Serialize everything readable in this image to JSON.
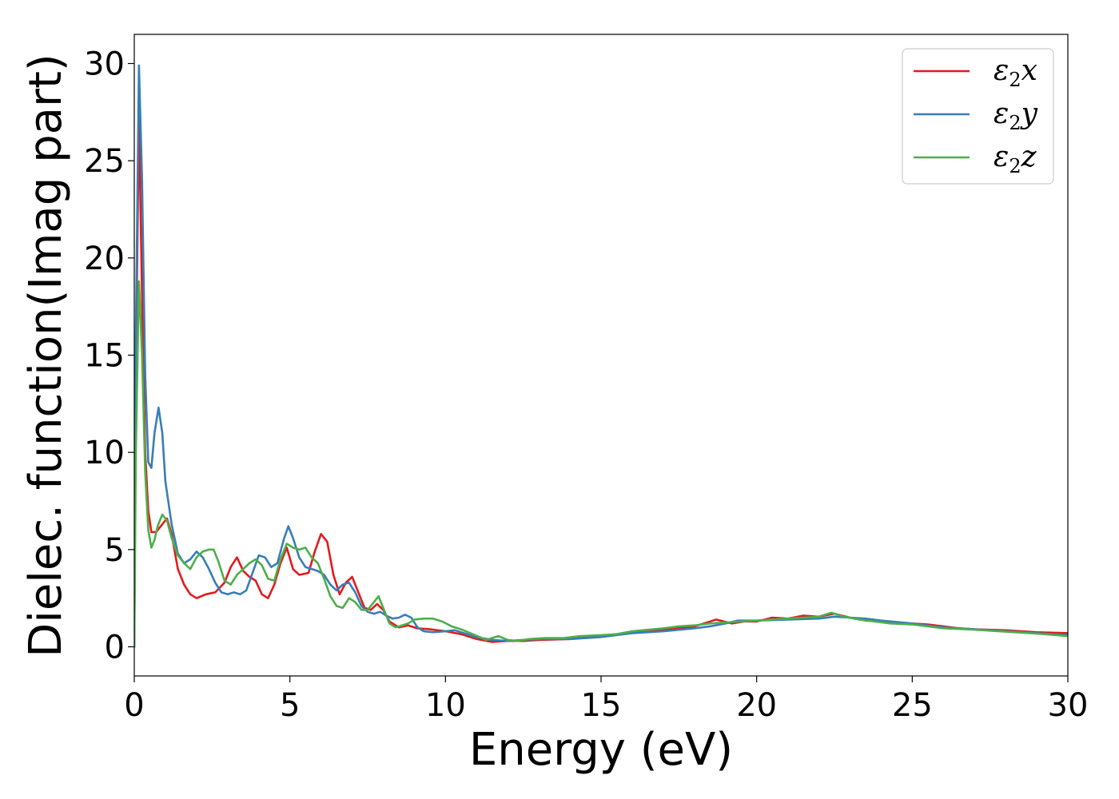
{
  "chart_data": {
    "type": "line",
    "xlabel": "Energy (eV)",
    "ylabel": "Dielec. function(Imag part)",
    "xlim": [
      0,
      30
    ],
    "ylim": [
      -1.5,
      31.5
    ],
    "x_ticks": [
      0,
      5,
      10,
      15,
      20,
      25,
      30
    ],
    "y_ticks": [
      0,
      5,
      10,
      15,
      20,
      25,
      30
    ],
    "grid": false,
    "legend_position": "top-right",
    "series": [
      {
        "name": "ε2x",
        "name_base": "ε",
        "name_sub": "2",
        "name_var": "x",
        "color": "#e41a1c",
        "points": [
          [
            0,
            0
          ],
          [
            0.05,
            14
          ],
          [
            0.15,
            27.3
          ],
          [
            0.25,
            18
          ],
          [
            0.35,
            10
          ],
          [
            0.45,
            7
          ],
          [
            0.55,
            5.9
          ],
          [
            0.7,
            5.9
          ],
          [
            0.9,
            6.3
          ],
          [
            1.05,
            6.6
          ],
          [
            1.2,
            5.8
          ],
          [
            1.4,
            4
          ],
          [
            1.6,
            3.2
          ],
          [
            1.8,
            2.7
          ],
          [
            2.0,
            2.5
          ],
          [
            2.3,
            2.7
          ],
          [
            2.6,
            2.8
          ],
          [
            2.9,
            3.3
          ],
          [
            3.1,
            4.1
          ],
          [
            3.3,
            4.6
          ],
          [
            3.5,
            3.9
          ],
          [
            3.7,
            3.6
          ],
          [
            3.9,
            3.4
          ],
          [
            4.1,
            2.7
          ],
          [
            4.3,
            2.5
          ],
          [
            4.5,
            3.2
          ],
          [
            4.7,
            4.3
          ],
          [
            4.9,
            5.1
          ],
          [
            5.1,
            4
          ],
          [
            5.3,
            3.7
          ],
          [
            5.6,
            3.8
          ],
          [
            5.8,
            4.9
          ],
          [
            6.0,
            5.8
          ],
          [
            6.2,
            5.4
          ],
          [
            6.4,
            3.7
          ],
          [
            6.6,
            2.7
          ],
          [
            6.8,
            3.3
          ],
          [
            7.0,
            3.6
          ],
          [
            7.2,
            2.8
          ],
          [
            7.4,
            2.0
          ],
          [
            7.6,
            1.9
          ],
          [
            7.8,
            2.2
          ],
          [
            8.0,
            1.9
          ],
          [
            8.2,
            1.3
          ],
          [
            8.5,
            1.0
          ],
          [
            8.8,
            1.1
          ],
          [
            9.1,
            0.95
          ],
          [
            9.5,
            0.9
          ],
          [
            10,
            0.8
          ],
          [
            10.5,
            0.65
          ],
          [
            11,
            0.4
          ],
          [
            11.5,
            0.25
          ],
          [
            12,
            0.3
          ],
          [
            12.5,
            0.3
          ],
          [
            13,
            0.35
          ],
          [
            14,
            0.4
          ],
          [
            15,
            0.55
          ],
          [
            16,
            0.75
          ],
          [
            17,
            0.85
          ],
          [
            18,
            1.05
          ],
          [
            18.7,
            1.4
          ],
          [
            19.2,
            1.2
          ],
          [
            19.6,
            1.3
          ],
          [
            20,
            1.3
          ],
          [
            20.5,
            1.5
          ],
          [
            21,
            1.45
          ],
          [
            21.5,
            1.6
          ],
          [
            22,
            1.55
          ],
          [
            22.5,
            1.7
          ],
          [
            23,
            1.5
          ],
          [
            23.5,
            1.35
          ],
          [
            24,
            1.3
          ],
          [
            24.5,
            1.2
          ],
          [
            25,
            1.2
          ],
          [
            25.5,
            1.15
          ],
          [
            26,
            1.05
          ],
          [
            26.5,
            0.95
          ],
          [
            27,
            0.9
          ],
          [
            28,
            0.85
          ],
          [
            29,
            0.75
          ],
          [
            30,
            0.7
          ]
        ]
      },
      {
        "name": "ε2y",
        "name_base": "ε",
        "name_sub": "2",
        "name_var": "y",
        "color": "#377eb8",
        "points": [
          [
            0,
            0
          ],
          [
            0.05,
            16
          ],
          [
            0.15,
            29.9
          ],
          [
            0.25,
            24
          ],
          [
            0.35,
            14
          ],
          [
            0.45,
            9.5
          ],
          [
            0.55,
            9.2
          ],
          [
            0.65,
            11
          ],
          [
            0.78,
            12.3
          ],
          [
            0.9,
            11
          ],
          [
            1.0,
            8.5
          ],
          [
            1.2,
            6.3
          ],
          [
            1.4,
            4.8
          ],
          [
            1.6,
            4.3
          ],
          [
            1.8,
            4.5
          ],
          [
            2.0,
            4.9
          ],
          [
            2.2,
            4.6
          ],
          [
            2.4,
            4.0
          ],
          [
            2.6,
            3.3
          ],
          [
            2.8,
            2.8
          ],
          [
            3.0,
            2.7
          ],
          [
            3.2,
            2.8
          ],
          [
            3.4,
            2.7
          ],
          [
            3.6,
            2.9
          ],
          [
            3.8,
            3.8
          ],
          [
            4.0,
            4.7
          ],
          [
            4.2,
            4.6
          ],
          [
            4.4,
            4.1
          ],
          [
            4.6,
            4.3
          ],
          [
            4.8,
            5.5
          ],
          [
            4.95,
            6.2
          ],
          [
            5.1,
            5.6
          ],
          [
            5.3,
            4.6
          ],
          [
            5.5,
            4.1
          ],
          [
            5.7,
            4.0
          ],
          [
            5.9,
            3.9
          ],
          [
            6.1,
            3.7
          ],
          [
            6.3,
            3.2
          ],
          [
            6.5,
            2.9
          ],
          [
            6.7,
            3.2
          ],
          [
            6.9,
            3.3
          ],
          [
            7.1,
            2.8
          ],
          [
            7.3,
            2.1
          ],
          [
            7.5,
            1.8
          ],
          [
            7.7,
            1.7
          ],
          [
            7.9,
            1.8
          ],
          [
            8.1,
            1.6
          ],
          [
            8.3,
            1.45
          ],
          [
            8.5,
            1.5
          ],
          [
            8.7,
            1.65
          ],
          [
            8.9,
            1.5
          ],
          [
            9.1,
            1.0
          ],
          [
            9.3,
            0.8
          ],
          [
            9.6,
            0.75
          ],
          [
            10,
            0.8
          ],
          [
            10.3,
            0.85
          ],
          [
            10.6,
            0.7
          ],
          [
            11,
            0.5
          ],
          [
            11.5,
            0.35
          ],
          [
            12,
            0.3
          ],
          [
            12.5,
            0.35
          ],
          [
            13,
            0.4
          ],
          [
            14,
            0.4
          ],
          [
            15,
            0.5
          ],
          [
            16,
            0.7
          ],
          [
            17,
            0.8
          ],
          [
            18,
            0.95
          ],
          [
            18.5,
            1.05
          ],
          [
            19,
            1.2
          ],
          [
            19.4,
            1.35
          ],
          [
            20,
            1.35
          ],
          [
            21,
            1.4
          ],
          [
            22,
            1.45
          ],
          [
            22.5,
            1.55
          ],
          [
            23,
            1.5
          ],
          [
            23.5,
            1.45
          ],
          [
            24,
            1.35
          ],
          [
            25,
            1.2
          ],
          [
            25.5,
            1.1
          ],
          [
            26,
            1.0
          ],
          [
            27,
            0.9
          ],
          [
            28,
            0.8
          ],
          [
            29,
            0.7
          ],
          [
            30,
            0.6
          ]
        ]
      },
      {
        "name": "ε2z",
        "name_base": "ε",
        "name_sub": "2",
        "name_var": "z",
        "color": "#4daf4a",
        "points": [
          [
            0,
            0
          ],
          [
            0.05,
            10
          ],
          [
            0.15,
            18.8
          ],
          [
            0.25,
            15
          ],
          [
            0.35,
            9
          ],
          [
            0.45,
            6
          ],
          [
            0.55,
            5.1
          ],
          [
            0.65,
            5.5
          ],
          [
            0.75,
            6.2
          ],
          [
            0.9,
            6.8
          ],
          [
            1.05,
            6.5
          ],
          [
            1.2,
            5.6
          ],
          [
            1.4,
            4.7
          ],
          [
            1.6,
            4.3
          ],
          [
            1.8,
            4.0
          ],
          [
            2.0,
            4.6
          ],
          [
            2.2,
            4.9
          ],
          [
            2.4,
            5.0
          ],
          [
            2.55,
            5.0
          ],
          [
            2.7,
            4.4
          ],
          [
            2.9,
            3.4
          ],
          [
            3.1,
            3.2
          ],
          [
            3.3,
            3.7
          ],
          [
            3.5,
            4.0
          ],
          [
            3.7,
            4.3
          ],
          [
            3.9,
            4.5
          ],
          [
            4.1,
            4.2
          ],
          [
            4.3,
            3.5
          ],
          [
            4.5,
            3.4
          ],
          [
            4.7,
            4.5
          ],
          [
            4.9,
            5.3
          ],
          [
            5.1,
            5.1
          ],
          [
            5.3,
            5.0
          ],
          [
            5.5,
            5.1
          ],
          [
            5.7,
            4.6
          ],
          [
            5.9,
            4.3
          ],
          [
            6.1,
            3.5
          ],
          [
            6.3,
            2.6
          ],
          [
            6.5,
            2.1
          ],
          [
            6.7,
            2.0
          ],
          [
            6.9,
            2.5
          ],
          [
            7.1,
            2.3
          ],
          [
            7.3,
            1.9
          ],
          [
            7.5,
            1.9
          ],
          [
            7.7,
            2.3
          ],
          [
            7.85,
            2.6
          ],
          [
            8.0,
            2.0
          ],
          [
            8.2,
            1.2
          ],
          [
            8.4,
            1.0
          ],
          [
            8.6,
            1.1
          ],
          [
            8.8,
            1.2
          ],
          [
            9.0,
            1.4
          ],
          [
            9.3,
            1.45
          ],
          [
            9.6,
            1.45
          ],
          [
            9.9,
            1.3
          ],
          [
            10.2,
            1.05
          ],
          [
            10.5,
            0.9
          ],
          [
            10.8,
            0.7
          ],
          [
            11.1,
            0.5
          ],
          [
            11.3,
            0.35
          ],
          [
            11.5,
            0.45
          ],
          [
            11.7,
            0.55
          ],
          [
            12,
            0.35
          ],
          [
            12.3,
            0.3
          ],
          [
            12.7,
            0.4
          ],
          [
            13.2,
            0.45
          ],
          [
            13.8,
            0.45
          ],
          [
            14.3,
            0.55
          ],
          [
            15,
            0.6
          ],
          [
            15.5,
            0.65
          ],
          [
            16,
            0.8
          ],
          [
            17,
            0.95
          ],
          [
            17.5,
            1.05
          ],
          [
            18,
            1.1
          ],
          [
            18.5,
            1.2
          ],
          [
            19,
            1.25
          ],
          [
            19.5,
            1.3
          ],
          [
            20,
            1.35
          ],
          [
            20.5,
            1.4
          ],
          [
            21,
            1.45
          ],
          [
            21.5,
            1.5
          ],
          [
            22,
            1.55
          ],
          [
            22.4,
            1.75
          ],
          [
            22.8,
            1.55
          ],
          [
            23.3,
            1.4
          ],
          [
            23.8,
            1.3
          ],
          [
            24.3,
            1.2
          ],
          [
            25,
            1.15
          ],
          [
            25.5,
            1.05
          ],
          [
            26,
            0.95
          ],
          [
            27,
            0.88
          ],
          [
            28,
            0.78
          ],
          [
            29,
            0.68
          ],
          [
            30,
            0.55
          ]
        ]
      }
    ]
  }
}
